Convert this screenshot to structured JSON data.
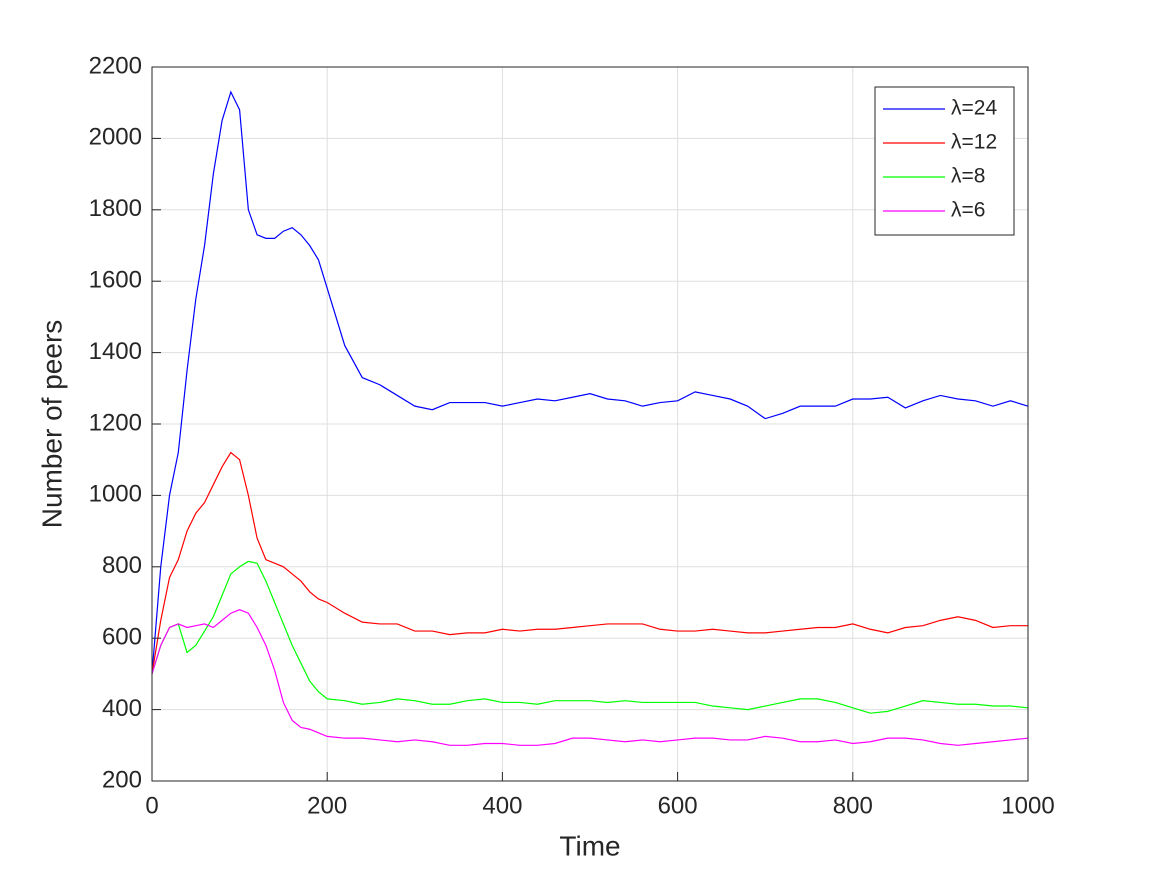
{
  "chart_data": {
    "type": "line",
    "xlabel": "Time",
    "ylabel": "Number of peers",
    "x": [
      0,
      10,
      20,
      30,
      40,
      50,
      60,
      70,
      80,
      90,
      100,
      110,
      120,
      130,
      140,
      150,
      160,
      170,
      180,
      190,
      200,
      220,
      240,
      260,
      280,
      300,
      320,
      340,
      360,
      380,
      400,
      420,
      440,
      460,
      480,
      500,
      520,
      540,
      560,
      580,
      600,
      620,
      640,
      660,
      680,
      700,
      720,
      740,
      760,
      780,
      800,
      820,
      840,
      860,
      880,
      900,
      920,
      940,
      960,
      980,
      1000
    ],
    "series": [
      {
        "name": "λ=24",
        "color": "#0000ff",
        "values": [
          500,
          800,
          1000,
          1120,
          1350,
          1550,
          1700,
          1900,
          2050,
          2130,
          2080,
          1800,
          1730,
          1720,
          1720,
          1740,
          1750,
          1730,
          1700,
          1660,
          1580,
          1420,
          1330,
          1310,
          1280,
          1250,
          1240,
          1260,
          1260,
          1260,
          1250,
          1260,
          1270,
          1265,
          1275,
          1285,
          1270,
          1265,
          1250,
          1260,
          1265,
          1290,
          1280,
          1270,
          1250,
          1215,
          1230,
          1250,
          1250,
          1250,
          1270,
          1270,
          1275,
          1245,
          1265,
          1280,
          1270,
          1265,
          1250,
          1265,
          1250
        ]
      },
      {
        "name": "λ=12",
        "color": "#ff0000",
        "values": [
          500,
          650,
          770,
          820,
          900,
          950,
          980,
          1030,
          1080,
          1120,
          1100,
          1000,
          880,
          820,
          810,
          800,
          780,
          760,
          730,
          710,
          700,
          670,
          645,
          640,
          640,
          620,
          620,
          610,
          615,
          615,
          625,
          620,
          625,
          625,
          630,
          635,
          640,
          640,
          640,
          625,
          620,
          620,
          625,
          620,
          615,
          615,
          620,
          625,
          630,
          630,
          640,
          625,
          615,
          630,
          635,
          650,
          660,
          650,
          630,
          635,
          635
        ]
      },
      {
        "name": "λ=8",
        "color": "#00ff00",
        "values": [
          500,
          580,
          630,
          640,
          560,
          580,
          620,
          660,
          720,
          780,
          800,
          815,
          810,
          760,
          700,
          640,
          580,
          530,
          480,
          450,
          430,
          425,
          415,
          420,
          430,
          425,
          415,
          415,
          425,
          430,
          420,
          420,
          415,
          425,
          425,
          425,
          420,
          425,
          420,
          420,
          420,
          420,
          410,
          405,
          400,
          410,
          420,
          430,
          430,
          420,
          405,
          390,
          395,
          410,
          425,
          420,
          415,
          415,
          410,
          410,
          405
        ]
      },
      {
        "name": "λ=6",
        "color": "#ff00ff",
        "values": [
          500,
          580,
          630,
          640,
          630,
          635,
          640,
          630,
          650,
          670,
          680,
          670,
          630,
          580,
          510,
          420,
          370,
          350,
          345,
          335,
          325,
          320,
          320,
          315,
          310,
          315,
          310,
          300,
          300,
          305,
          305,
          300,
          300,
          305,
          320,
          320,
          315,
          310,
          315,
          310,
          315,
          320,
          320,
          315,
          315,
          325,
          320,
          310,
          310,
          315,
          305,
          310,
          320,
          320,
          315,
          305,
          300,
          305,
          310,
          315,
          320
        ]
      }
    ],
    "xlim": [
      0,
      1000
    ],
    "xticks": [
      0,
      200,
      400,
      600,
      800,
      1000
    ],
    "ylim": [
      200,
      2200
    ],
    "yticks": [
      200,
      400,
      600,
      800,
      1000,
      1200,
      1400,
      1600,
      1800,
      2000,
      2200
    ],
    "grid": true,
    "legend": "top-right"
  }
}
